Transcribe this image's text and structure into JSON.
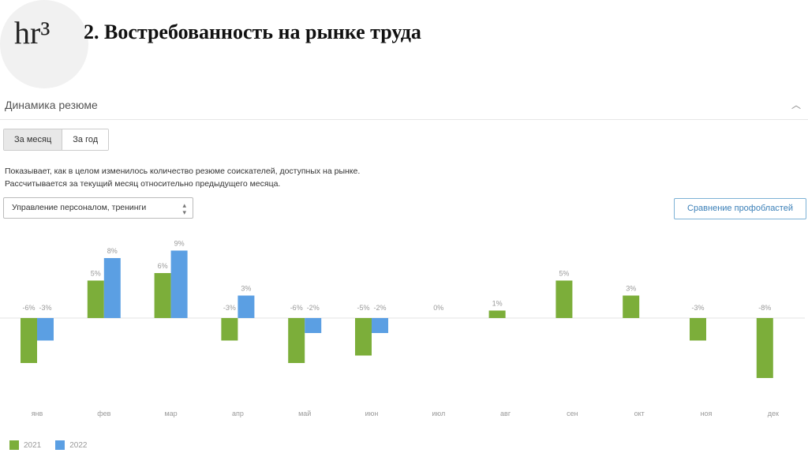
{
  "header": {
    "logo_text": "hr³",
    "slide_title": "2. Востребованность на рынке труда"
  },
  "widget": {
    "title": "Динамика резюме",
    "tabs": [
      {
        "label": "За месяц",
        "active": true
      },
      {
        "label": "За год",
        "active": false
      }
    ],
    "description_line1": "Показывает, как в целом изменилось количество резюме соискателей, доступных на рынке.",
    "description_line2": "Рассчитывается за текущий месяц относительно предыдущего месяца.",
    "select_value": "Управление персоналом, тренинги",
    "compare_button": "Сравнение профобластей"
  },
  "colors": {
    "series_2021": "#7cae3a",
    "series_2022": "#5b9fe3",
    "zero_line": "#e3e3e3",
    "label": "#999999"
  },
  "chart_data": {
    "type": "bar",
    "categories": [
      "янв",
      "фев",
      "мар",
      "апр",
      "май",
      "июн",
      "июл",
      "авг",
      "сен",
      "окт",
      "ноя",
      "дек"
    ],
    "series": [
      {
        "name": "2021",
        "values": [
          -6,
          5,
          6,
          -3,
          -6,
          -5,
          0,
          1,
          5,
          3,
          -3,
          -8
        ],
        "labels": [
          "-6%",
          "5%",
          "6%",
          "-3%",
          "-6%",
          "-5%",
          "0%",
          "1%",
          "5%",
          "3%",
          "-3%",
          "-8%"
        ]
      },
      {
        "name": "2022",
        "values": [
          -3,
          8,
          9,
          3,
          -2,
          -2,
          null,
          null,
          null,
          null,
          null,
          null
        ],
        "labels": [
          "-3%",
          "8%",
          "9%",
          "3%",
          "-2%",
          "-2%",
          null,
          null,
          null,
          null,
          null,
          null
        ]
      }
    ],
    "ylim": [
      -10,
      10
    ],
    "legend_position": "bottom-left",
    "grid": false
  },
  "legend": [
    "2021",
    "2022"
  ]
}
